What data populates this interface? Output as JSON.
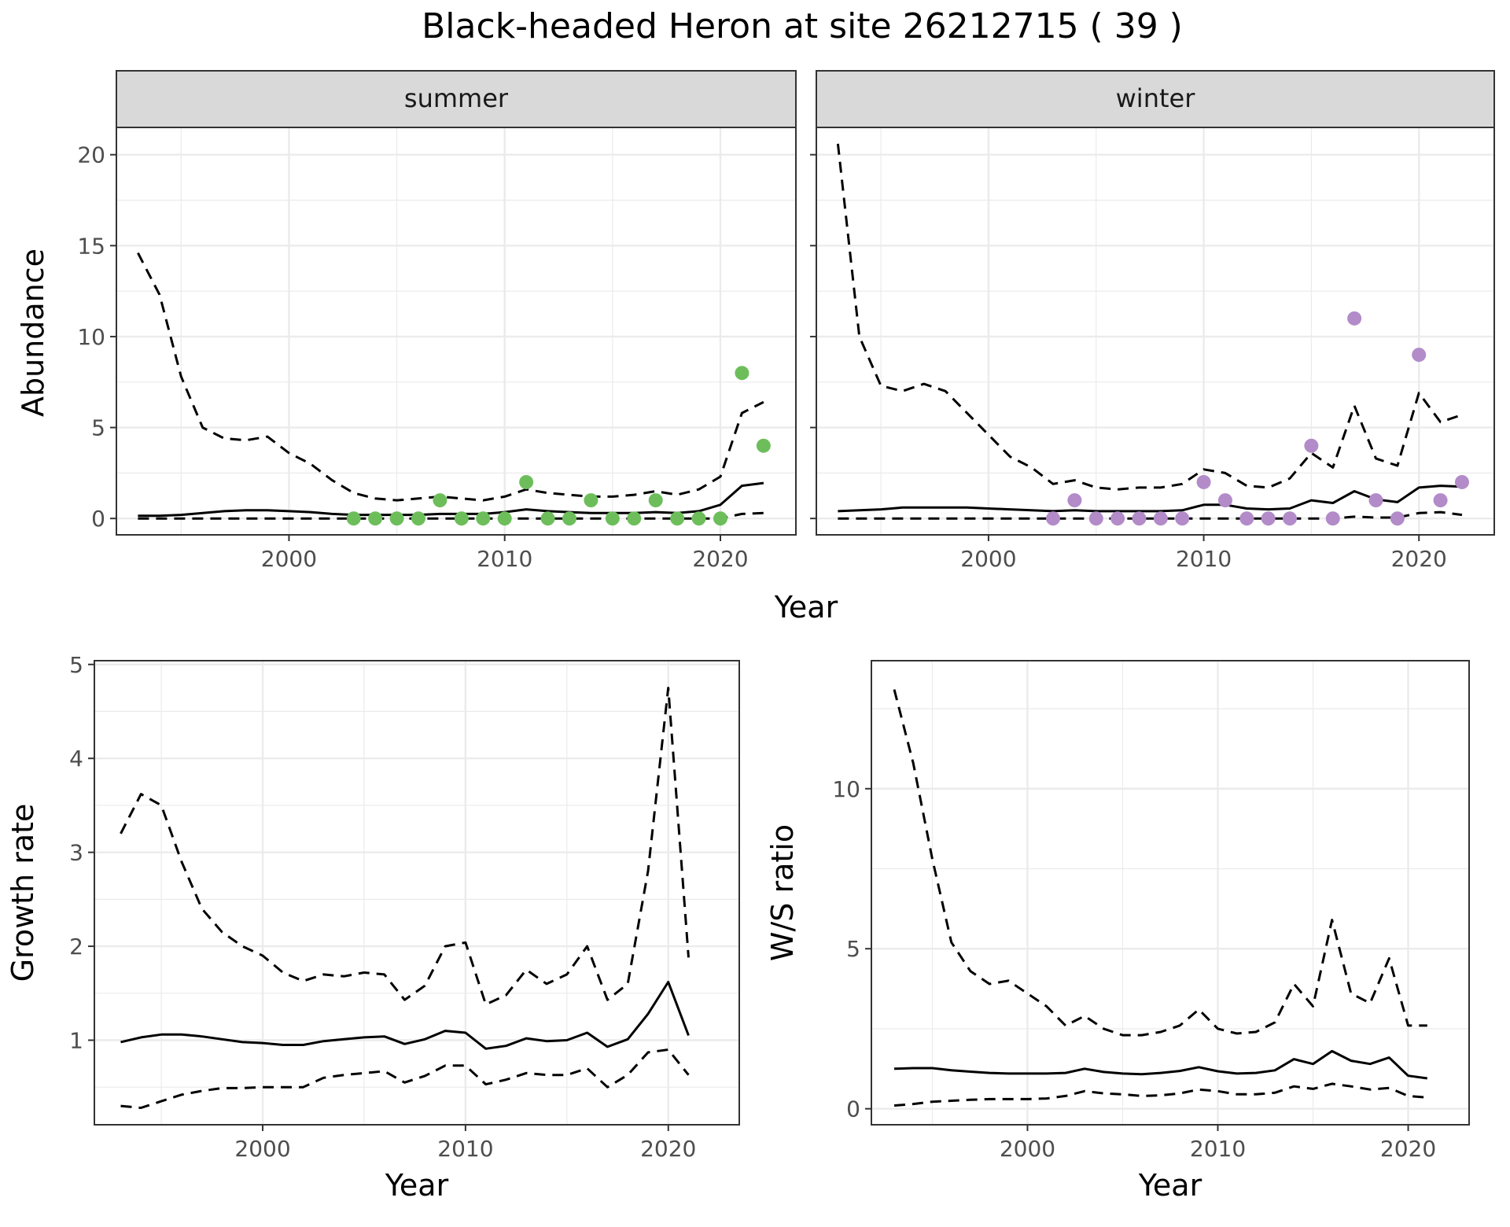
{
  "title": "Black-headed Heron at site 26212715 ( 39 )",
  "colors": {
    "summer_points": "#6DBE5B",
    "winter_points": "#B28BC8",
    "line": "#000000",
    "strip_fill": "#D9D9D9",
    "grid": "#EBEBEB",
    "tick_text": "#4D4D4D"
  },
  "chart_data": [
    {
      "type": "line",
      "facet": "summer",
      "xlabel": "Year",
      "ylabel": "Abundance",
      "xlim": [
        1992,
        2023.5
      ],
      "ylim": [
        -0.9,
        21.5
      ],
      "xticks": [
        2000,
        2010,
        2020
      ],
      "yticks": [
        0,
        5,
        10,
        15,
        20
      ],
      "grid": true,
      "series": [
        {
          "role": "upper",
          "dash": true,
          "x": [
            1993,
            1994,
            1995,
            1996,
            1997,
            1998,
            1999,
            2000,
            2001,
            2002,
            2003,
            2004,
            2005,
            2006,
            2007,
            2008,
            2009,
            2010,
            2011,
            2012,
            2013,
            2014,
            2015,
            2016,
            2017,
            2018,
            2019,
            2020,
            2021,
            2022
          ],
          "y": [
            14.6,
            12.3,
            7.8,
            5.0,
            4.4,
            4.3,
            4.5,
            3.6,
            3.0,
            2.1,
            1.4,
            1.1,
            1.0,
            1.1,
            1.2,
            1.1,
            1.0,
            1.2,
            1.6,
            1.4,
            1.3,
            1.2,
            1.2,
            1.3,
            1.5,
            1.3,
            1.6,
            2.3,
            5.8,
            6.4
          ]
        },
        {
          "role": "mean",
          "dash": false,
          "x": [
            1993,
            1994,
            1995,
            1996,
            1997,
            1998,
            1999,
            2000,
            2001,
            2002,
            2003,
            2004,
            2005,
            2006,
            2007,
            2008,
            2009,
            2010,
            2011,
            2012,
            2013,
            2014,
            2015,
            2016,
            2017,
            2018,
            2019,
            2020,
            2021,
            2022
          ],
          "y": [
            0.15,
            0.15,
            0.2,
            0.3,
            0.4,
            0.45,
            0.45,
            0.4,
            0.35,
            0.25,
            0.2,
            0.2,
            0.2,
            0.2,
            0.25,
            0.25,
            0.25,
            0.35,
            0.5,
            0.4,
            0.35,
            0.3,
            0.3,
            0.3,
            0.35,
            0.3,
            0.4,
            0.75,
            1.8,
            1.95
          ]
        },
        {
          "role": "lower",
          "dash": true,
          "x": [
            1993,
            1994,
            1995,
            1996,
            1997,
            1998,
            1999,
            2000,
            2001,
            2002,
            2003,
            2004,
            2005,
            2006,
            2007,
            2008,
            2009,
            2010,
            2011,
            2012,
            2013,
            2014,
            2015,
            2016,
            2017,
            2018,
            2019,
            2020,
            2021,
            2022
          ],
          "y": [
            0,
            0,
            0,
            0,
            0,
            0,
            0,
            0,
            0,
            0,
            0,
            0,
            0,
            0,
            0,
            0,
            0,
            0,
            0,
            0,
            0,
            0,
            0,
            0,
            0,
            0,
            0,
            0,
            0.25,
            0.3
          ]
        }
      ],
      "points": {
        "x": [
          2003,
          2004,
          2005,
          2006,
          2007,
          2008,
          2009,
          2010,
          2011,
          2012,
          2013,
          2014,
          2015,
          2016,
          2017,
          2018,
          2019,
          2020,
          2021,
          2022
        ],
        "y": [
          0,
          0,
          0,
          0,
          1,
          0,
          0,
          0,
          2,
          0,
          0,
          1,
          0,
          0,
          1,
          0,
          0,
          0,
          8,
          4
        ]
      }
    },
    {
      "type": "line",
      "facet": "winter",
      "xlabel": "Year",
      "ylabel": "Abundance",
      "xlim": [
        1992,
        2023.5
      ],
      "ylim": [
        -0.9,
        21.5
      ],
      "xticks": [
        2000,
        2010,
        2020
      ],
      "yticks": [
        0,
        5,
        10,
        15,
        20
      ],
      "grid": true,
      "series": [
        {
          "role": "upper",
          "dash": true,
          "x": [
            1993,
            1994,
            1995,
            1996,
            1997,
            1998,
            1999,
            2000,
            2001,
            2002,
            2003,
            2004,
            2005,
            2006,
            2007,
            2008,
            2009,
            2010,
            2011,
            2012,
            2013,
            2014,
            2015,
            2016,
            2017,
            2018,
            2019,
            2020,
            2021,
            2022
          ],
          "y": [
            20.6,
            10.0,
            7.3,
            7.0,
            7.4,
            7.0,
            5.8,
            4.6,
            3.4,
            2.8,
            1.9,
            2.1,
            1.7,
            1.6,
            1.7,
            1.7,
            1.9,
            2.7,
            2.5,
            1.8,
            1.7,
            2.2,
            3.6,
            2.8,
            6.2,
            3.3,
            2.9,
            6.9,
            5.3,
            5.7
          ]
        },
        {
          "role": "mean",
          "dash": false,
          "x": [
            1993,
            1994,
            1995,
            1996,
            1997,
            1998,
            1999,
            2000,
            2001,
            2002,
            2003,
            2004,
            2005,
            2006,
            2007,
            2008,
            2009,
            2010,
            2011,
            2012,
            2013,
            2014,
            2015,
            2016,
            2017,
            2018,
            2019,
            2020,
            2021,
            2022
          ],
          "y": [
            0.4,
            0.45,
            0.5,
            0.6,
            0.6,
            0.6,
            0.6,
            0.55,
            0.5,
            0.45,
            0.4,
            0.45,
            0.4,
            0.4,
            0.4,
            0.4,
            0.45,
            0.75,
            0.75,
            0.55,
            0.5,
            0.55,
            1.0,
            0.85,
            1.5,
            1.05,
            0.9,
            1.7,
            1.8,
            1.75
          ]
        },
        {
          "role": "lower",
          "dash": true,
          "x": [
            1993,
            1994,
            1995,
            1996,
            1997,
            1998,
            1999,
            2000,
            2001,
            2002,
            2003,
            2004,
            2005,
            2006,
            2007,
            2008,
            2009,
            2010,
            2011,
            2012,
            2013,
            2014,
            2015,
            2016,
            2017,
            2018,
            2019,
            2020,
            2021,
            2022
          ],
          "y": [
            0,
            0,
            0,
            0,
            0,
            0,
            0,
            0,
            0,
            0,
            0,
            0,
            0,
            0,
            0,
            0,
            0,
            0,
            0,
            0,
            0,
            0,
            0,
            0,
            0.1,
            0.05,
            0.05,
            0.3,
            0.35,
            0.2
          ]
        }
      ],
      "points": {
        "x": [
          2003,
          2004,
          2005,
          2006,
          2007,
          2008,
          2009,
          2010,
          2011,
          2012,
          2013,
          2014,
          2015,
          2016,
          2017,
          2018,
          2019,
          2020,
          2021,
          2022
        ],
        "y": [
          0,
          1,
          0,
          0,
          0,
          0,
          0,
          2,
          1,
          0,
          0,
          0,
          4,
          0,
          11,
          1,
          0,
          9,
          1,
          2
        ]
      }
    },
    {
      "type": "line",
      "xlabel": "Year",
      "ylabel": "Growth rate",
      "xlim": [
        1991.7,
        2023.5
      ],
      "ylim": [
        0.1,
        5.04
      ],
      "xticks": [
        2000,
        2010,
        2020
      ],
      "yticks": [
        1,
        2,
        3,
        4,
        5
      ],
      "grid": true,
      "series": [
        {
          "role": "upper",
          "dash": true,
          "x": [
            1993,
            1994,
            1995,
            1996,
            1997,
            1998,
            1999,
            2000,
            2001,
            2002,
            2003,
            2004,
            2005,
            2006,
            2007,
            2008,
            2009,
            2010,
            2011,
            2012,
            2013,
            2014,
            2015,
            2016,
            2017,
            2018,
            2019,
            2020,
            2021
          ],
          "y": [
            3.2,
            3.62,
            3.5,
            2.9,
            2.4,
            2.15,
            2.0,
            1.9,
            1.72,
            1.63,
            1.7,
            1.68,
            1.72,
            1.7,
            1.43,
            1.58,
            2.0,
            2.04,
            1.38,
            1.48,
            1.75,
            1.6,
            1.7,
            2.0,
            1.43,
            1.6,
            2.8,
            4.75,
            1.88
          ]
        },
        {
          "role": "mean",
          "dash": false,
          "x": [
            1993,
            1994,
            1995,
            1996,
            1997,
            1998,
            1999,
            2000,
            2001,
            2002,
            2003,
            2004,
            2005,
            2006,
            2007,
            2008,
            2009,
            2010,
            2011,
            2012,
            2013,
            2014,
            2015,
            2016,
            2017,
            2018,
            2019,
            2020,
            2021
          ],
          "y": [
            0.98,
            1.03,
            1.06,
            1.06,
            1.04,
            1.01,
            0.98,
            0.97,
            0.95,
            0.95,
            0.99,
            1.01,
            1.03,
            1.04,
            0.96,
            1.01,
            1.1,
            1.08,
            0.91,
            0.94,
            1.02,
            0.99,
            1.0,
            1.08,
            0.93,
            1.01,
            1.28,
            1.62,
            1.05
          ]
        },
        {
          "role": "lower",
          "dash": true,
          "x": [
            1993,
            1994,
            1995,
            1996,
            1997,
            1998,
            1999,
            2000,
            2001,
            2002,
            2003,
            2004,
            2005,
            2006,
            2007,
            2008,
            2009,
            2010,
            2011,
            2012,
            2013,
            2014,
            2015,
            2016,
            2017,
            2018,
            2019,
            2020,
            2021
          ],
          "y": [
            0.3,
            0.28,
            0.35,
            0.42,
            0.46,
            0.49,
            0.49,
            0.5,
            0.5,
            0.5,
            0.6,
            0.63,
            0.65,
            0.67,
            0.55,
            0.62,
            0.73,
            0.73,
            0.53,
            0.58,
            0.65,
            0.63,
            0.63,
            0.7,
            0.5,
            0.63,
            0.87,
            0.9,
            0.63
          ]
        }
      ]
    },
    {
      "type": "line",
      "xlabel": "Year",
      "ylabel": "W/S ratio",
      "xlim": [
        1991.8,
        2023.2
      ],
      "ylim": [
        -0.5,
        14.0
      ],
      "xticks": [
        2000,
        2010,
        2020
      ],
      "yticks": [
        0,
        5,
        10
      ],
      "grid": true,
      "series": [
        {
          "role": "upper",
          "dash": true,
          "x": [
            1993,
            1994,
            1995,
            1996,
            1997,
            1998,
            1999,
            2000,
            2001,
            2002,
            2003,
            2004,
            2005,
            2006,
            2007,
            2008,
            2009,
            2010,
            2011,
            2012,
            2013,
            2014,
            2015,
            2016,
            2017,
            2018,
            2019,
            2020,
            2021
          ],
          "y": [
            13.1,
            10.8,
            7.8,
            5.2,
            4.3,
            3.9,
            4.0,
            3.6,
            3.2,
            2.6,
            2.9,
            2.5,
            2.3,
            2.3,
            2.4,
            2.6,
            3.1,
            2.5,
            2.35,
            2.4,
            2.7,
            3.9,
            3.2,
            5.9,
            3.6,
            3.3,
            4.7,
            2.6,
            2.6
          ]
        },
        {
          "role": "mean",
          "dash": false,
          "x": [
            1993,
            1994,
            1995,
            1996,
            1997,
            1998,
            1999,
            2000,
            2001,
            2002,
            2003,
            2004,
            2005,
            2006,
            2007,
            2008,
            2009,
            2010,
            2011,
            2012,
            2013,
            2014,
            2015,
            2016,
            2017,
            2018,
            2019,
            2020,
            2021
          ],
          "y": [
            1.25,
            1.27,
            1.27,
            1.2,
            1.16,
            1.12,
            1.1,
            1.1,
            1.1,
            1.12,
            1.25,
            1.15,
            1.1,
            1.08,
            1.12,
            1.18,
            1.3,
            1.17,
            1.1,
            1.12,
            1.2,
            1.55,
            1.4,
            1.8,
            1.5,
            1.4,
            1.6,
            1.03,
            0.95
          ]
        },
        {
          "role": "lower",
          "dash": true,
          "x": [
            1993,
            1994,
            1995,
            1996,
            1997,
            1998,
            1999,
            2000,
            2001,
            2002,
            2003,
            2004,
            2005,
            2006,
            2007,
            2008,
            2009,
            2010,
            2011,
            2012,
            2013,
            2014,
            2015,
            2016,
            2017,
            2018,
            2019,
            2020,
            2021
          ],
          "y": [
            0.1,
            0.15,
            0.22,
            0.25,
            0.28,
            0.3,
            0.3,
            0.3,
            0.32,
            0.4,
            0.55,
            0.48,
            0.45,
            0.4,
            0.42,
            0.48,
            0.6,
            0.55,
            0.45,
            0.45,
            0.5,
            0.7,
            0.62,
            0.78,
            0.7,
            0.6,
            0.65,
            0.4,
            0.35
          ]
        }
      ]
    }
  ]
}
